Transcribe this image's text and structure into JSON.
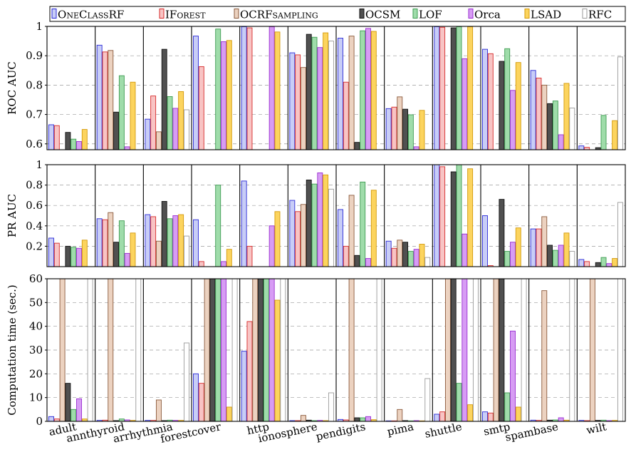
{
  "chart_data": {
    "type": "bar",
    "categories": [
      "adult",
      "annthyroid",
      "arrhythmia",
      "forestcover",
      "http",
      "ionosphere",
      "pendigits",
      "pima",
      "shuttle",
      "smtp",
      "spambase",
      "wilt"
    ],
    "series": [
      {
        "name": "OneClassRF",
        "legend_parts": [
          {
            "t": "O",
            "sc": false
          },
          {
            "t": "NE",
            "sc": true
          },
          {
            "t": "C",
            "sc": false
          },
          {
            "t": "LASS",
            "sc": true
          },
          {
            "t": "RF",
            "sc": false
          }
        ],
        "fill": "#c8cdf7",
        "stroke": "#2b2bd6"
      },
      {
        "name": "IForest",
        "legend_parts": [
          {
            "t": "IF",
            "sc": false
          },
          {
            "t": "OREST",
            "sc": true
          }
        ],
        "fill": "#f8c4c4",
        "stroke": "#d62b2b"
      },
      {
        "name": "OCRFsampling",
        "legend_parts": [
          {
            "t": "OCRF",
            "sc": false
          },
          {
            "t": "SAMPLING",
            "sc": true
          }
        ],
        "fill": "#ecd2c0",
        "stroke": "#8a5a3c"
      },
      {
        "name": "OCSM",
        "legend_parts": [
          {
            "t": "OCSM",
            "sc": false
          }
        ],
        "fill": "#505050",
        "stroke": "#111111"
      },
      {
        "name": "LOF",
        "legend_parts": [
          {
            "t": "LOF",
            "sc": false
          }
        ],
        "fill": "#9fdcaa",
        "stroke": "#3e9c52"
      },
      {
        "name": "Orca",
        "legend_parts": [
          {
            "t": "Orca",
            "sc": false
          }
        ],
        "fill": "#d79cf4",
        "stroke": "#9a2fd0"
      },
      {
        "name": "LSAD",
        "legend_parts": [
          {
            "t": "LSAD",
            "sc": false
          }
        ],
        "fill": "#fcd45e",
        "stroke": "#d49a0a"
      },
      {
        "name": "RFC",
        "legend_parts": [
          {
            "t": "RFC",
            "sc": false
          }
        ],
        "fill": "#ffffff",
        "stroke": "#9a9a9a"
      }
    ],
    "panels": [
      {
        "metric": "roc",
        "ylabel": "ROC AUC",
        "ylim": [
          0.58,
          1.0
        ],
        "yticks": [
          0.6,
          0.7,
          0.8,
          0.9,
          1.0
        ],
        "yticklabels": [
          "0.6",
          "0.7",
          "0.8",
          "0.9",
          "1"
        ],
        "values": [
          [
            0.665,
            0.662,
            null,
            0.639,
            0.616,
            0.608,
            0.649,
            null
          ],
          [
            0.936,
            0.913,
            0.918,
            0.708,
            0.832,
            0.59,
            0.81,
            null
          ],
          [
            0.684,
            0.763,
            0.641,
            0.922,
            0.761,
            0.721,
            0.778,
            0.716
          ],
          [
            0.967,
            0.863,
            null,
            null,
            0.991,
            0.948,
            0.952,
            null
          ],
          [
            0.999,
            0.995,
            null,
            null,
            null,
            0.999,
            0.981,
            null
          ],
          [
            0.91,
            0.903,
            0.86,
            0.973,
            0.963,
            0.928,
            0.978,
            0.95
          ],
          [
            0.96,
            0.81,
            0.967,
            0.605,
            0.985,
            0.993,
            0.983,
            null
          ],
          [
            0.72,
            0.725,
            0.76,
            0.718,
            0.699,
            0.59,
            0.714,
            null
          ],
          [
            0.999,
            0.997,
            null,
            0.995,
            0.999,
            0.89,
            0.999,
            null
          ],
          [
            0.922,
            0.907,
            null,
            0.881,
            0.924,
            0.782,
            0.877,
            null
          ],
          [
            0.85,
            0.824,
            0.8,
            0.737,
            0.746,
            0.631,
            0.806,
            0.722
          ],
          [
            0.593,
            0.588,
            null,
            0.587,
            0.697,
            null,
            0.679,
            0.896
          ]
        ]
      },
      {
        "metric": "pr",
        "ylabel": "PR AUC",
        "ylim": [
          0.0,
          1.0
        ],
        "yticks": [
          0.2,
          0.4,
          0.6,
          0.8,
          1.0
        ],
        "yticklabels": [
          "0.2",
          "0.4",
          "0.6",
          "0.8",
          "1"
        ],
        "values": [
          [
            0.28,
            0.23,
            null,
            0.2,
            0.19,
            0.18,
            0.26,
            null
          ],
          [
            0.47,
            0.46,
            0.53,
            0.24,
            0.45,
            0.13,
            0.33,
            null
          ],
          [
            0.51,
            0.49,
            0.25,
            0.64,
            0.47,
            0.5,
            0.51,
            0.3
          ],
          [
            0.46,
            0.05,
            null,
            null,
            0.8,
            0.05,
            0.17,
            null
          ],
          [
            0.84,
            0.2,
            null,
            null,
            null,
            0.4,
            0.54,
            null
          ],
          [
            0.65,
            0.54,
            0.61,
            0.85,
            0.81,
            0.92,
            0.9,
            0.76
          ],
          [
            0.56,
            0.2,
            0.7,
            0.11,
            0.83,
            0.08,
            0.75,
            null
          ],
          [
            0.25,
            0.18,
            0.26,
            0.24,
            0.15,
            0.17,
            0.22,
            0.09
          ],
          [
            1.0,
            0.98,
            null,
            0.93,
            1.0,
            0.32,
            0.96,
            null
          ],
          [
            0.5,
            0.01,
            null,
            0.66,
            0.15,
            0.24,
            0.38,
            null
          ],
          [
            0.37,
            0.37,
            0.49,
            0.21,
            0.16,
            0.21,
            0.33,
            0.15
          ],
          [
            0.07,
            0.05,
            null,
            0.04,
            0.09,
            0.03,
            0.08,
            0.63
          ]
        ]
      },
      {
        "metric": "time",
        "ylabel": "Computation time (sec.)",
        "ylim": [
          0,
          60
        ],
        "yticks": [
          0,
          10,
          20,
          30,
          40,
          50,
          60
        ],
        "yticklabels": [
          "0",
          "10",
          "20",
          "30",
          "40",
          "50",
          "60"
        ],
        "values": [
          [
            2.0,
            1.0,
            60,
            16.0,
            5.0,
            9.5,
            1.0,
            60
          ],
          [
            0.4,
            0.5,
            60,
            0.3,
            1.0,
            0.6,
            0.4,
            60
          ],
          [
            0.4,
            0.4,
            9.0,
            0.3,
            0.5,
            0.4,
            0.4,
            33.0
          ],
          [
            20.0,
            16.0,
            60,
            60,
            60,
            60,
            6.0,
            60
          ],
          [
            29.5,
            42.0,
            60,
            60,
            60,
            60,
            51.0,
            60
          ],
          [
            0.3,
            0.3,
            2.5,
            0.5,
            0.3,
            0.4,
            0.3,
            12.0
          ],
          [
            0.8,
            0.6,
            60,
            1.5,
            1.5,
            2.0,
            0.7,
            60
          ],
          [
            0.2,
            0.2,
            5.0,
            0.3,
            0.2,
            0.3,
            0.2,
            18.0
          ],
          [
            3.0,
            4.0,
            60,
            60,
            16.0,
            60,
            7.0,
            60
          ],
          [
            4.0,
            3.5,
            60,
            60,
            12.0,
            38.0,
            6.0,
            60
          ],
          [
            0.5,
            0.4,
            55.0,
            0.5,
            0.6,
            1.5,
            0.5,
            60
          ],
          [
            0.4,
            0.3,
            60,
            0.4,
            0.5,
            0.3,
            0.4,
            60
          ]
        ]
      }
    ],
    "grid": true,
    "legend_position": "top"
  }
}
